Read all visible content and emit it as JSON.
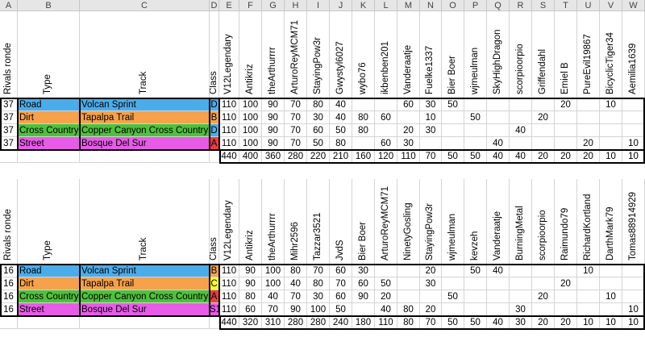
{
  "columns": [
    "A",
    "B",
    "C",
    "D",
    "E",
    "F",
    "G",
    "H",
    "I",
    "J",
    "K",
    "L",
    "M",
    "N",
    "O",
    "P",
    "Q",
    "R",
    "S",
    "T",
    "U",
    "V",
    "W"
  ],
  "colors": {
    "Road": "#4bacea",
    "Dirt": "#f6a14b",
    "Cross Country": "#4fc13c",
    "Street": "#e65ce6",
    "classD": "#4bacea",
    "classB": "#f6a14b",
    "classA": "#ea3d3d",
    "classC": "#ffff33",
    "classS1": "#e65ce6"
  },
  "tables": [
    {
      "header": {
        "round": "Rivals ronde",
        "type": "Type",
        "track": "Track",
        "class": "Class"
      },
      "players": [
        "V12Legendary",
        "Antikriz",
        "theArthurrrr",
        "ArturoReyMCM71",
        "StayingPow3r",
        "Gwystyl6027",
        "wybo76",
        "ikbenben201",
        "Vanderaatje",
        "Fuelke1337",
        "Bier Boer",
        "wjmeulman",
        "SkyHighDragon",
        "scorpioorpio",
        "Griffendahl",
        "Emiel B",
        "PureEvil19867",
        "BicyclicTiger34",
        "Aemilia1639"
      ],
      "rows": [
        {
          "round": "37",
          "type": "Road",
          "track": "Volcan Sprint",
          "class": "D",
          "classColor": "classD",
          "scores": [
            "110",
            "100",
            "90",
            "70",
            "80",
            "40",
            "",
            "",
            "60",
            "30",
            "50",
            "",
            "",
            "",
            "",
            "20",
            "",
            "10",
            ""
          ]
        },
        {
          "round": "37",
          "type": "Dirt",
          "track": "Tapalpa Trail",
          "class": "B",
          "classColor": "classB",
          "scores": [
            "110",
            "100",
            "90",
            "70",
            "30",
            "40",
            "80",
            "60",
            "",
            "10",
            "",
            "50",
            "",
            "",
            "20",
            "",
            "",
            "",
            ""
          ]
        },
        {
          "round": "37",
          "type": "Cross Country",
          "track": "Copper Canyon Cross Country",
          "class": "D",
          "classColor": "classD",
          "scores": [
            "110",
            "100",
            "90",
            "70",
            "60",
            "50",
            "80",
            "",
            "20",
            "30",
            "",
            "",
            "",
            "40",
            "",
            "",
            "",
            "",
            ""
          ]
        },
        {
          "round": "37",
          "type": "Street",
          "track": "Bosque Del Sur",
          "class": "A",
          "classColor": "classA",
          "scores": [
            "110",
            "100",
            "90",
            "70",
            "50",
            "80",
            "",
            "60",
            "30",
            "",
            "",
            "",
            "40",
            "",
            "",
            "",
            "20",
            "",
            "10"
          ]
        }
      ],
      "totals": [
        "440",
        "400",
        "360",
        "280",
        "220",
        "210",
        "160",
        "120",
        "110",
        "70",
        "50",
        "50",
        "40",
        "40",
        "20",
        "20",
        "20",
        "10",
        "10"
      ]
    },
    {
      "header": {
        "round": "Rivals ronde",
        "type": "Type",
        "track": "Track",
        "class": "Class"
      },
      "players": [
        "V12Legendary",
        "Antikriz",
        "theArthurrrr",
        "Mihr2596",
        "Tazzar3521",
        "JvdS",
        "Bier Boer",
        "ArturoReyMCM71",
        "NinetyGosling",
        "StayingPow3r",
        "wjmeulman",
        "kevzeh",
        "Vanderaatje",
        "BurningMetal",
        "scorpioorpio",
        "Raimundo79",
        "RichardKortland",
        "DarthMark79",
        "Tomas88914929"
      ],
      "rows": [
        {
          "round": "16",
          "type": "Road",
          "track": "Volcan Sprint",
          "class": "B",
          "classColor": "classB",
          "scores": [
            "110",
            "90",
            "100",
            "80",
            "70",
            "60",
            "30",
            "",
            "",
            "20",
            "",
            "50",
            "40",
            "",
            "",
            "",
            "10",
            "",
            ""
          ]
        },
        {
          "round": "16",
          "type": "Dirt",
          "track": "Tapalpa Trail",
          "class": "C",
          "classColor": "classC",
          "scores": [
            "110",
            "90",
            "100",
            "40",
            "80",
            "70",
            "60",
            "50",
            "",
            "30",
            "",
            "",
            "",
            "",
            "",
            "20",
            "",
            "",
            ""
          ]
        },
        {
          "round": "16",
          "type": "Cross Country",
          "track": "Copper Canyon Cross Country",
          "class": "A",
          "classColor": "classA",
          "scores": [
            "110",
            "80",
            "40",
            "70",
            "30",
            "60",
            "90",
            "20",
            "",
            "",
            "50",
            "",
            "",
            "",
            "20",
            "",
            "",
            "10",
            ""
          ]
        },
        {
          "round": "16",
          "type": "Street",
          "track": "Bosque Del Sur",
          "class": "S1",
          "classColor": "classS1",
          "scores": [
            "110",
            "60",
            "70",
            "90",
            "100",
            "50",
            "",
            "40",
            "80",
            "20",
            "",
            "",
            "",
            "30",
            "",
            "",
            "",
            "",
            "10"
          ]
        }
      ],
      "totals": [
        "440",
        "320",
        "310",
        "280",
        "280",
        "240",
        "180",
        "110",
        "80",
        "70",
        "50",
        "50",
        "40",
        "30",
        "20",
        "20",
        "10",
        "10",
        "10"
      ]
    }
  ]
}
